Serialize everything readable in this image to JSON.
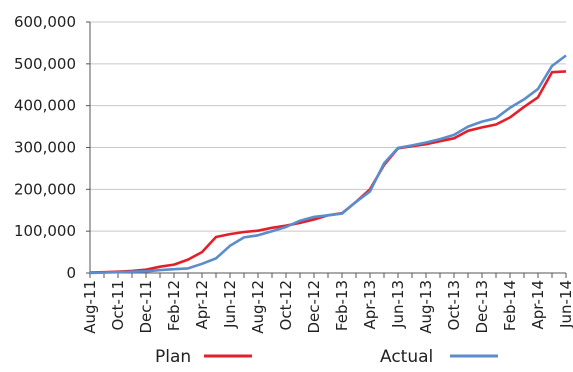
{
  "chart_data": {
    "type": "line",
    "title": "",
    "xlabel": "",
    "ylabel": "",
    "ylim": [
      0,
      600000
    ],
    "yticks": [
      0,
      100000,
      200000,
      300000,
      400000,
      500000,
      600000
    ],
    "ytick_labels": [
      "0",
      "100,000",
      "200,000",
      "300,000",
      "400,000",
      "500,000",
      "600,000"
    ],
    "xtick_labels": [
      "Aug-11",
      "Oct-11",
      "Dec-11",
      "Feb-12",
      "Apr-12",
      "Jun-12",
      "Aug-12",
      "Oct-12",
      "Dec-12",
      "Feb-13",
      "Apr-13",
      "Jun-13",
      "Aug-13",
      "Oct-13",
      "Dec-13",
      "Feb-14",
      "Apr-14",
      "Jun-14"
    ],
    "x": [
      "Aug-11",
      "Sep-11",
      "Oct-11",
      "Nov-11",
      "Dec-11",
      "Jan-12",
      "Feb-12",
      "Mar-12",
      "Apr-12",
      "May-12",
      "Jun-12",
      "Jul-12",
      "Aug-12",
      "Sep-12",
      "Oct-12",
      "Nov-12",
      "Dec-12",
      "Jan-13",
      "Feb-13",
      "Mar-13",
      "Apr-13",
      "May-13",
      "Jun-13",
      "Jul-13",
      "Aug-13",
      "Sep-13",
      "Oct-13",
      "Nov-13",
      "Dec-13",
      "Jan-14",
      "Feb-14",
      "Mar-14",
      "Apr-14",
      "May-14",
      "Jun-14"
    ],
    "grid": "horizontal",
    "legend_position": "bottom",
    "series": [
      {
        "name": "Plan",
        "color": "#e3202a",
        "values": [
          1000,
          2000,
          3000,
          5000,
          8000,
          15000,
          20000,
          32000,
          50000,
          86000,
          93000,
          98000,
          101000,
          108000,
          113000,
          120000,
          128000,
          138000,
          143000,
          170000,
          200000,
          258000,
          298000,
          303000,
          308000,
          315000,
          322000,
          340000,
          348000,
          355000,
          372000,
          397000,
          420000,
          480000,
          482000
        ]
      },
      {
        "name": "Actual",
        "color": "#5b8ccc",
        "values": [
          0,
          1000,
          2000,
          3000,
          4000,
          7000,
          9000,
          11000,
          22000,
          35000,
          65000,
          85000,
          90000,
          100000,
          110000,
          125000,
          134000,
          138000,
          142000,
          170000,
          195000,
          262000,
          299000,
          305000,
          312000,
          320000,
          330000,
          350000,
          362000,
          370000,
          395000,
          415000,
          440000,
          495000,
          520000
        ]
      }
    ]
  }
}
